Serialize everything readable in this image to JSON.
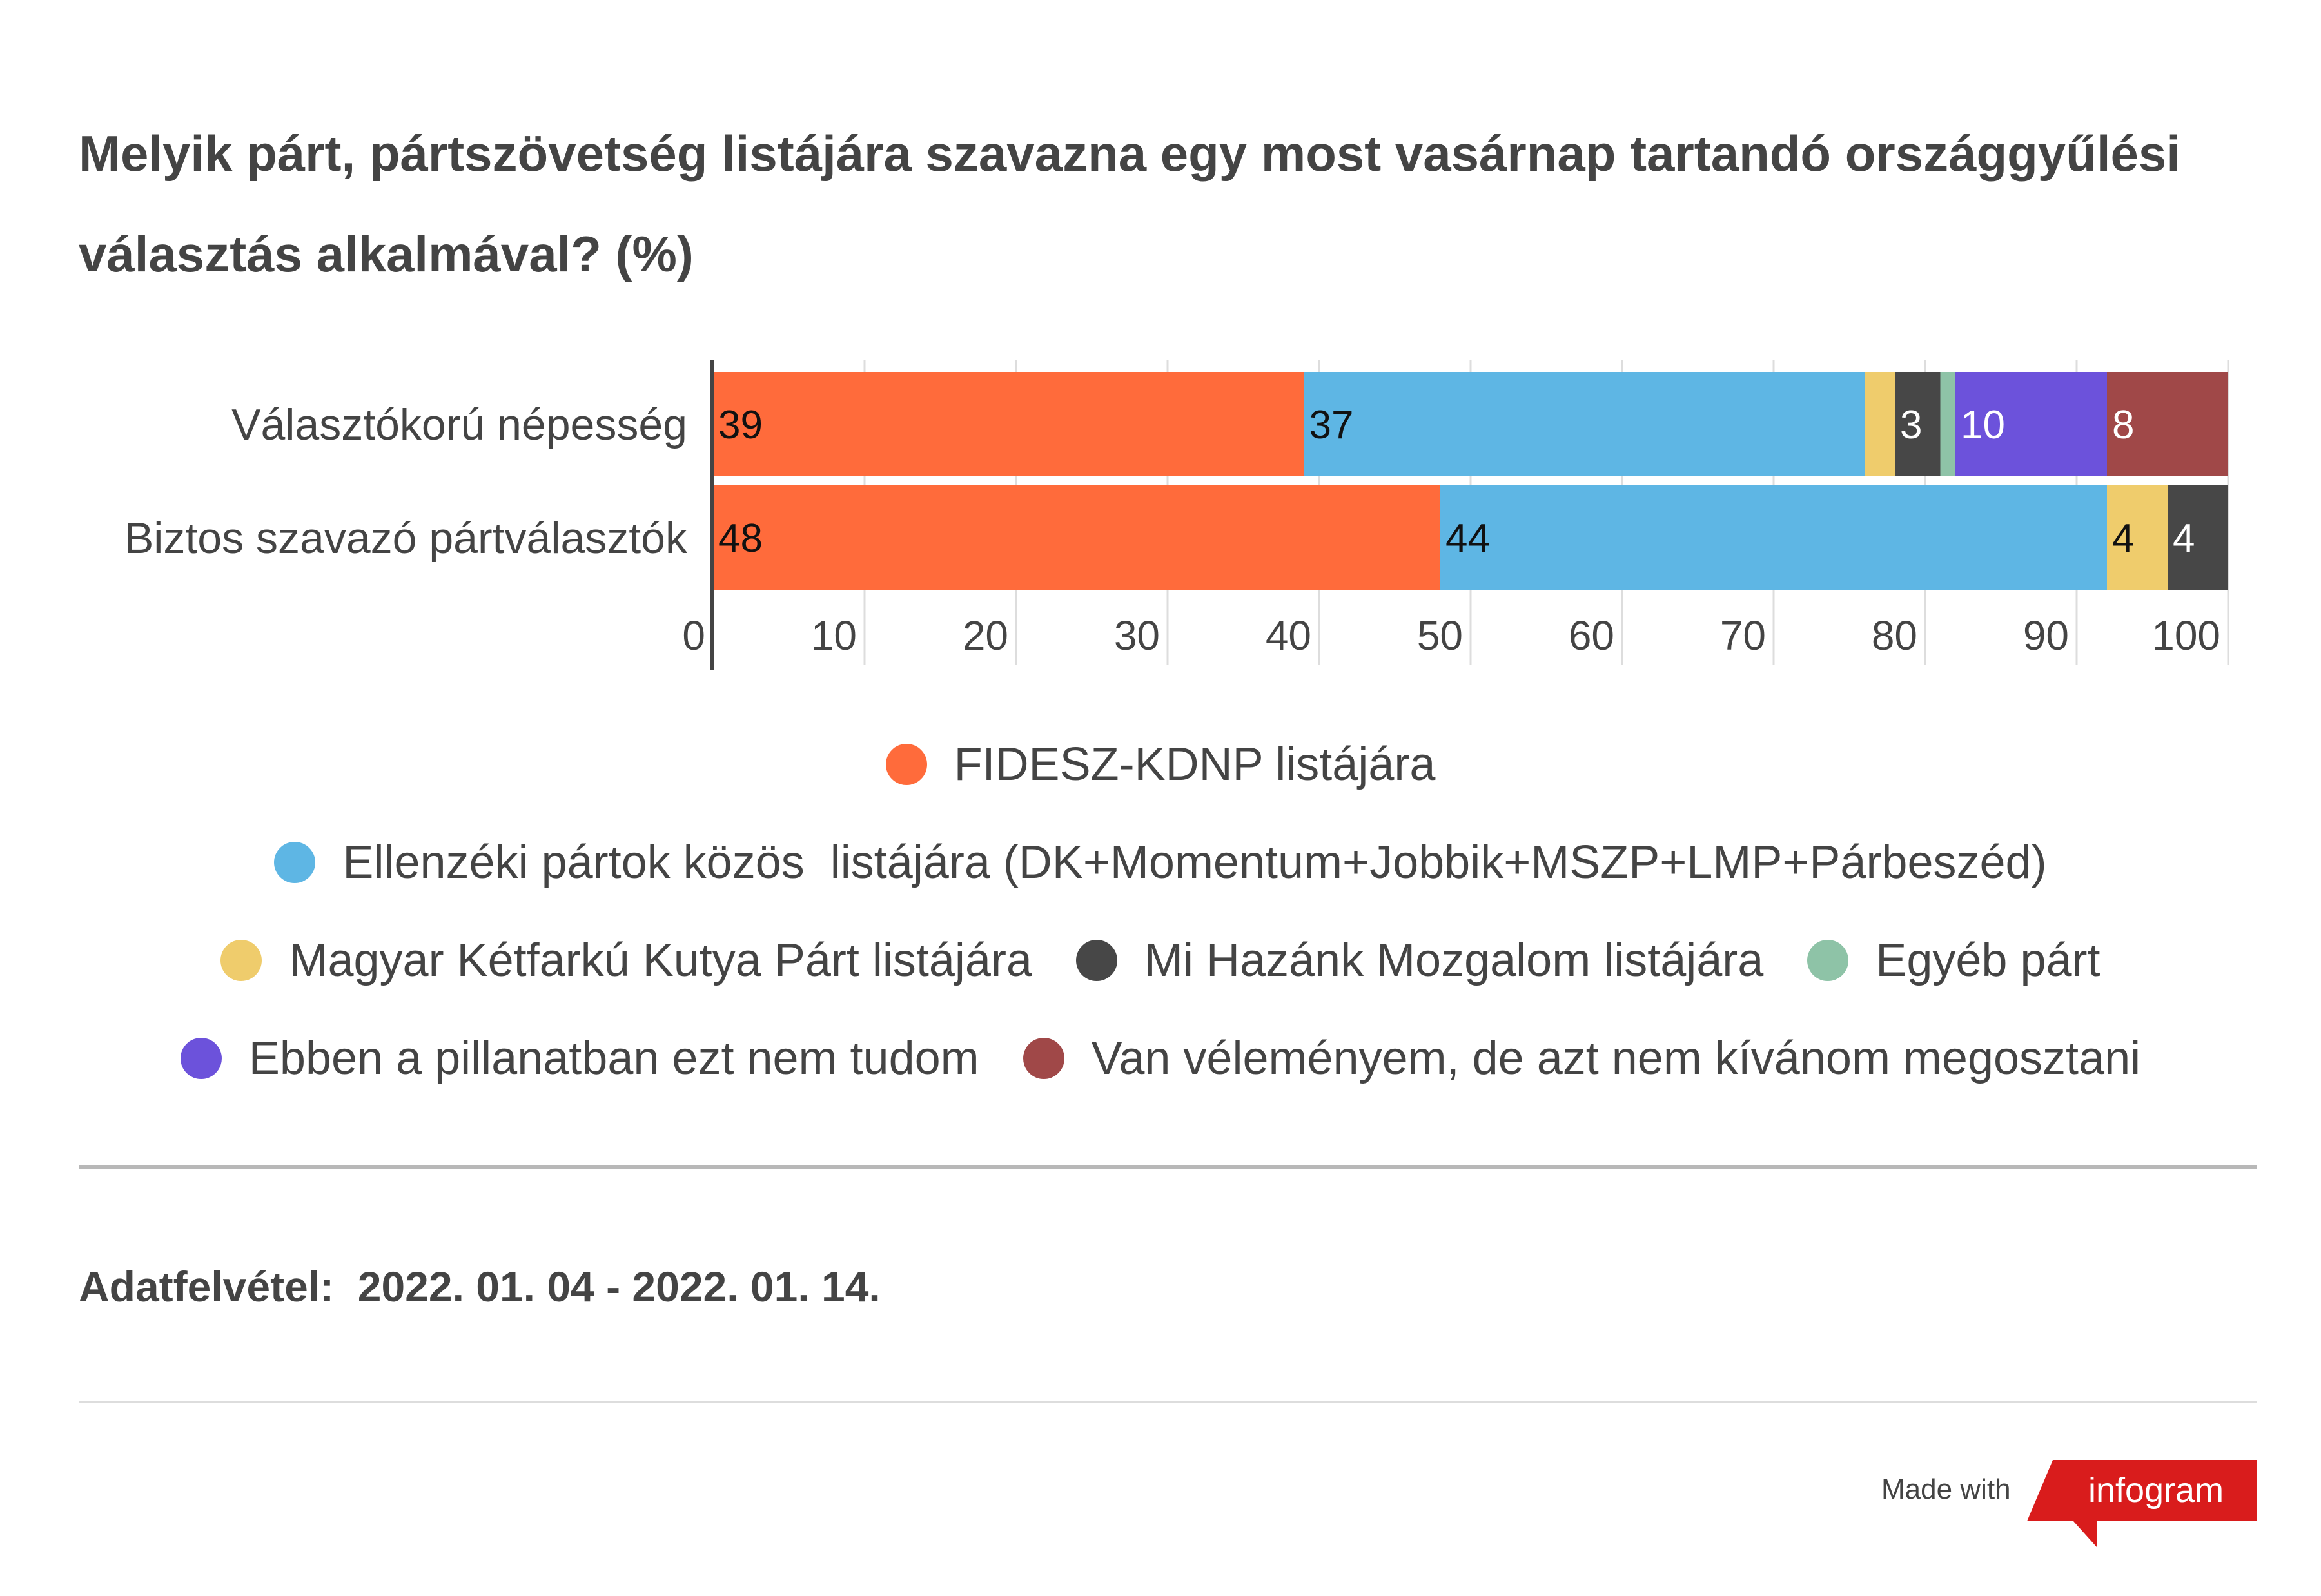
{
  "title": "Melyik párt, pártszövetség listájára szavazna egy most vasárnap tartandó országgyűlési választás alkalmával? (%)",
  "chart_data": {
    "type": "bar",
    "orientation": "horizontal",
    "stacked": true,
    "categories": [
      "Választókorú népesség",
      "Biztos szavazó pártválasztók"
    ],
    "series": [
      {
        "name": "FIDESZ-KDNP listájára",
        "color": "#ff6b3b",
        "values": [
          39,
          48
        ],
        "labels": [
          "39",
          "48"
        ]
      },
      {
        "name": "Ellenzéki pártok közös  listájára (DK+Momentum+Jobbik+MSZP+LMP+Párbeszéd)",
        "color": "#5eb6e4",
        "values": [
          37,
          44
        ],
        "labels": [
          "37",
          "44"
        ]
      },
      {
        "name": "Magyar Kétfarkú Kutya Párt listájára",
        "color": "#efcc6c",
        "values": [
          2,
          4
        ],
        "labels": [
          "",
          "4"
        ]
      },
      {
        "name": "Mi Hazánk Mozgalom listájára",
        "color": "#474747",
        "values": [
          3,
          4
        ],
        "labels": [
          "3",
          "4"
        ]
      },
      {
        "name": "Egyéb párt",
        "color": "#8ec3a7",
        "values": [
          1,
          0
        ],
        "labels": [
          "",
          ""
        ]
      },
      {
        "name": "Ebben a pillanatban ezt nem tudom",
        "color": "#6c52db",
        "values": [
          10,
          0
        ],
        "labels": [
          "10",
          ""
        ]
      },
      {
        "name": "Van véleményem, de azt nem kívánom megosztani",
        "color": "#a04848",
        "values": [
          8,
          0
        ],
        "labels": [
          "8",
          ""
        ]
      }
    ],
    "xlim": [
      0,
      100
    ],
    "xticks": [
      "0",
      "10",
      "20",
      "30",
      "40",
      "50",
      "60",
      "70",
      "80",
      "90",
      "100"
    ],
    "grid": true,
    "legend_position": "bottom"
  },
  "legend_rows": [
    [
      0
    ],
    [
      1
    ],
    [
      2,
      3,
      4
    ],
    [
      5,
      6
    ]
  ],
  "footnote": "Adatfelvétel:  2022. 01. 04 - 2022. 01. 14.",
  "branding": {
    "made_with": "Made with",
    "logo_text": "infogram",
    "logo_color": "#d91c1c"
  }
}
